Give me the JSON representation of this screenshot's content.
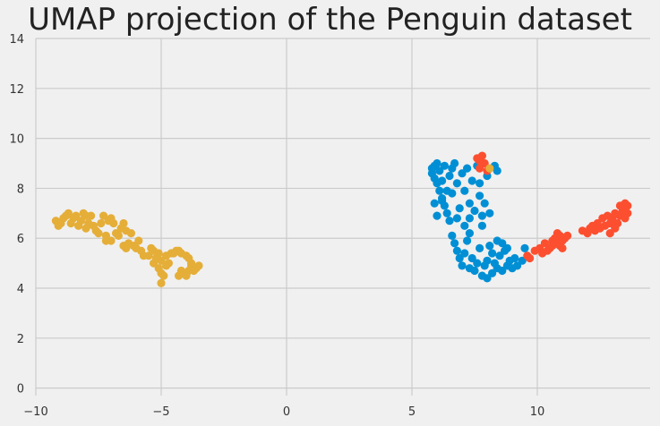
{
  "chart_data": {
    "type": "scatter",
    "title": "UMAP projection of the Penguin dataset",
    "xlabel": "",
    "ylabel": "",
    "xlim": [
      -10,
      14.5
    ],
    "ylim": [
      -0.3,
      14
    ],
    "xticks": [
      -10,
      -5,
      0,
      5,
      10
    ],
    "yticks": [
      0,
      2,
      4,
      6,
      8,
      10,
      12,
      14
    ],
    "xtick_labels": [
      "−10",
      "−5",
      "0",
      "5",
      "10"
    ],
    "ytick_labels": [
      "0",
      "2",
      "4",
      "6",
      "8",
      "10",
      "12",
      "14"
    ],
    "grid": true,
    "legend": "none",
    "series": [
      {
        "color": "#e5ae38",
        "points": [
          [
            -9.2,
            6.7
          ],
          [
            -9.1,
            6.5
          ],
          [
            -9.0,
            6.6
          ],
          [
            -8.9,
            6.8
          ],
          [
            -8.8,
            6.9
          ],
          [
            -8.7,
            7.0
          ],
          [
            -8.6,
            6.6
          ],
          [
            -8.5,
            6.8
          ],
          [
            -8.4,
            6.9
          ],
          [
            -8.3,
            6.5
          ],
          [
            -8.2,
            6.7
          ],
          [
            -8.1,
            7.0
          ],
          [
            -8.0,
            6.4
          ],
          [
            -8.0,
            6.9
          ],
          [
            -7.9,
            6.6
          ],
          [
            -7.8,
            6.9
          ],
          [
            -7.7,
            6.5
          ],
          [
            -7.6,
            6.3
          ],
          [
            -7.5,
            6.2
          ],
          [
            -7.4,
            6.6
          ],
          [
            -7.3,
            6.9
          ],
          [
            -7.2,
            6.1
          ],
          [
            -7.2,
            5.9
          ],
          [
            -7.1,
            6.7
          ],
          [
            -7.0,
            6.8
          ],
          [
            -7.0,
            5.9
          ],
          [
            -6.9,
            6.6
          ],
          [
            -6.8,
            6.2
          ],
          [
            -6.7,
            6.1
          ],
          [
            -6.6,
            6.4
          ],
          [
            -6.5,
            5.7
          ],
          [
            -6.5,
            6.6
          ],
          [
            -6.4,
            6.3
          ],
          [
            -6.4,
            5.6
          ],
          [
            -6.3,
            5.8
          ],
          [
            -6.2,
            6.2
          ],
          [
            -6.1,
            5.7
          ],
          [
            -6.0,
            5.6
          ],
          [
            -5.9,
            5.9
          ],
          [
            -5.8,
            5.5
          ],
          [
            -5.7,
            5.3
          ],
          [
            -5.5,
            5.3
          ],
          [
            -5.4,
            5.6
          ],
          [
            -5.3,
            5.0
          ],
          [
            -5.3,
            5.5
          ],
          [
            -5.2,
            5.2
          ],
          [
            -5.1,
            4.8
          ],
          [
            -5.1,
            5.4
          ],
          [
            -5.0,
            4.6
          ],
          [
            -5.0,
            5.1
          ],
          [
            -5.0,
            4.2
          ],
          [
            -4.9,
            4.5
          ],
          [
            -4.8,
            5.3
          ],
          [
            -4.8,
            4.9
          ],
          [
            -4.7,
            5.0
          ],
          [
            -4.6,
            5.4
          ],
          [
            -4.5,
            5.4
          ],
          [
            -4.4,
            5.5
          ],
          [
            -4.3,
            4.5
          ],
          [
            -4.3,
            5.5
          ],
          [
            -4.2,
            5.4
          ],
          [
            -4.2,
            4.7
          ],
          [
            -4.1,
            4.6
          ],
          [
            -4.0,
            5.3
          ],
          [
            -4.0,
            4.5
          ],
          [
            -3.9,
            5.2
          ],
          [
            -3.9,
            4.7
          ],
          [
            -3.8,
            4.9
          ],
          [
            -3.8,
            5.0
          ],
          [
            -3.7,
            4.7
          ],
          [
            -3.6,
            4.8
          ],
          [
            -3.5,
            4.9
          ]
        ]
      },
      {
        "color": "#008fd5",
        "points": [
          [
            5.8,
            8.8
          ],
          [
            5.8,
            8.6
          ],
          [
            5.9,
            8.9
          ],
          [
            5.9,
            8.4
          ],
          [
            6.0,
            8.2
          ],
          [
            6.0,
            9.0
          ],
          [
            6.1,
            8.7
          ],
          [
            6.1,
            7.9
          ],
          [
            6.2,
            7.6
          ],
          [
            6.3,
            8.9
          ],
          [
            6.3,
            7.3
          ],
          [
            6.4,
            7.0
          ],
          [
            6.5,
            8.5
          ],
          [
            6.6,
            8.8
          ],
          [
            6.6,
            7.8
          ],
          [
            6.7,
            9.0
          ],
          [
            6.8,
            6.8
          ],
          [
            6.8,
            8.2
          ],
          [
            6.9,
            7.2
          ],
          [
            7.0,
            8.6
          ],
          [
            7.1,
            7.9
          ],
          [
            7.2,
            8.8
          ],
          [
            7.3,
            7.4
          ],
          [
            7.4,
            8.3
          ],
          [
            7.5,
            7.1
          ],
          [
            7.6,
            8.9
          ],
          [
            7.7,
            7.7
          ],
          [
            7.7,
            8.2
          ],
          [
            7.8,
            6.9
          ],
          [
            7.9,
            7.4
          ],
          [
            8.0,
            8.5
          ],
          [
            8.1,
            7.0
          ],
          [
            5.9,
            7.4
          ],
          [
            6.0,
            6.9
          ],
          [
            6.2,
            7.5
          ],
          [
            6.5,
            6.7
          ],
          [
            6.6,
            6.1
          ],
          [
            6.7,
            5.8
          ],
          [
            6.8,
            5.5
          ],
          [
            6.9,
            5.2
          ],
          [
            7.0,
            4.9
          ],
          [
            7.1,
            5.4
          ],
          [
            7.1,
            6.5
          ],
          [
            7.2,
            5.9
          ],
          [
            7.3,
            4.8
          ],
          [
            7.3,
            6.2
          ],
          [
            7.4,
            5.2
          ],
          [
            7.5,
            4.7
          ],
          [
            7.6,
            5.0
          ],
          [
            7.7,
            5.6
          ],
          [
            7.8,
            4.5
          ],
          [
            7.8,
            6.5
          ],
          [
            7.9,
            4.9
          ],
          [
            8.0,
            4.4
          ],
          [
            8.0,
            5.1
          ],
          [
            8.1,
            5.7
          ],
          [
            8.2,
            4.6
          ],
          [
            8.2,
            5.4
          ],
          [
            8.3,
            5.0
          ],
          [
            8.4,
            5.9
          ],
          [
            8.4,
            4.8
          ],
          [
            8.5,
            5.3
          ],
          [
            8.6,
            4.7
          ],
          [
            8.6,
            5.8
          ],
          [
            8.7,
            5.5
          ],
          [
            8.8,
            4.9
          ],
          [
            8.8,
            5.6
          ],
          [
            8.9,
            5.1
          ],
          [
            9.0,
            4.8
          ],
          [
            9.1,
            5.2
          ],
          [
            9.2,
            4.9
          ],
          [
            9.4,
            5.1
          ],
          [
            9.5,
            5.6
          ],
          [
            8.3,
            8.9
          ],
          [
            8.4,
            8.7
          ],
          [
            7.3,
            6.8
          ],
          [
            6.4,
            7.9
          ],
          [
            6.2,
            8.3
          ]
        ]
      },
      {
        "color": "#fc4f30",
        "points": [
          [
            7.6,
            9.2
          ],
          [
            7.7,
            9.1
          ],
          [
            7.8,
            9.3
          ],
          [
            7.9,
            9.0
          ],
          [
            7.7,
            8.8
          ],
          [
            8.0,
            8.7
          ],
          [
            9.7,
            5.2
          ],
          [
            9.9,
            5.5
          ],
          [
            10.1,
            5.6
          ],
          [
            10.2,
            5.4
          ],
          [
            10.3,
            5.8
          ],
          [
            10.4,
            5.5
          ],
          [
            10.5,
            5.6
          ],
          [
            10.6,
            5.9
          ],
          [
            10.6,
            5.7
          ],
          [
            10.7,
            6.0
          ],
          [
            10.8,
            5.8
          ],
          [
            10.8,
            6.2
          ],
          [
            10.9,
            6.1
          ],
          [
            11.0,
            5.9
          ],
          [
            11.1,
            6.0
          ],
          [
            11.2,
            6.1
          ],
          [
            11.0,
            5.6
          ],
          [
            10.9,
            5.7
          ],
          [
            11.8,
            6.3
          ],
          [
            12.0,
            6.2
          ],
          [
            12.1,
            6.4
          ],
          [
            12.2,
            6.5
          ],
          [
            12.3,
            6.3
          ],
          [
            12.4,
            6.6
          ],
          [
            12.5,
            6.4
          ],
          [
            12.6,
            6.8
          ],
          [
            12.7,
            6.5
          ],
          [
            12.8,
            6.9
          ],
          [
            12.9,
            6.6
          ],
          [
            12.9,
            6.2
          ],
          [
            13.0,
            6.8
          ],
          [
            13.1,
            7.0
          ],
          [
            13.1,
            6.4
          ],
          [
            13.2,
            6.6
          ],
          [
            13.3,
            6.9
          ],
          [
            13.3,
            7.3
          ],
          [
            13.4,
            7.1
          ],
          [
            13.5,
            6.8
          ],
          [
            13.5,
            7.4
          ],
          [
            13.6,
            7.0
          ],
          [
            13.6,
            7.3
          ],
          [
            9.6,
            5.3
          ]
        ]
      },
      {
        "color": "#e5ae38",
        "points": [
          [
            8.1,
            8.8
          ]
        ]
      }
    ]
  }
}
